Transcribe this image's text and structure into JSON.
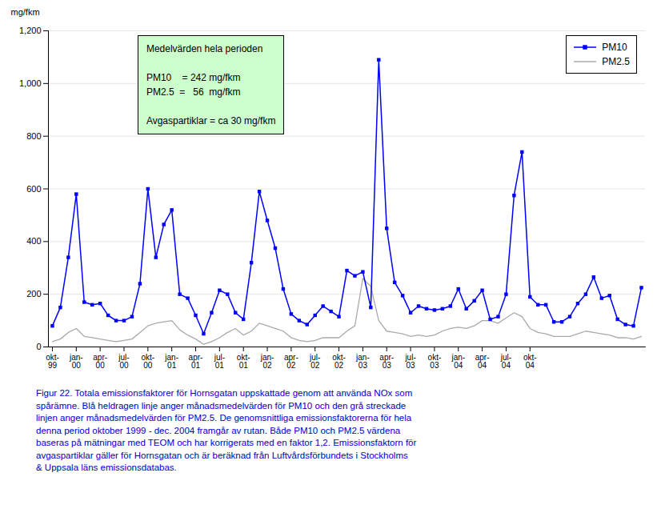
{
  "chart_data": {
    "type": "line",
    "ylabel": "mg/fkm",
    "categories": [
      "okt-\n99",
      null,
      null,
      "jan-\n00",
      null,
      null,
      "apr-\n00",
      null,
      null,
      "jul-\n00",
      null,
      null,
      "okt-\n00",
      null,
      null,
      "jan-\n01",
      null,
      null,
      "apr-\n01",
      null,
      null,
      "jul-\n01",
      null,
      null,
      "okt-\n01",
      null,
      null,
      "jan-\n02",
      null,
      null,
      "apr-\n02",
      null,
      null,
      "jul-\n02",
      null,
      null,
      "okt-\n02",
      null,
      null,
      "jan-\n03",
      null,
      null,
      "apr-\n03",
      null,
      null,
      "jul-\n03",
      null,
      null,
      "okt-\n03",
      null,
      null,
      "jan-\n04",
      null,
      null,
      "apr-\n04",
      null,
      null,
      "jul-\n04",
      null,
      null,
      "okt-\n04",
      null,
      null,
      null,
      null,
      null,
      null,
      null,
      null,
      null,
      null,
      null,
      null,
      null,
      null
    ],
    "series": [
      {
        "name": "PM10",
        "color": "#0000FF",
        "marker": "square",
        "values": [
          80,
          150,
          340,
          580,
          170,
          160,
          165,
          120,
          100,
          100,
          115,
          240,
          600,
          340,
          465,
          520,
          200,
          185,
          120,
          50,
          130,
          215,
          200,
          130,
          105,
          320,
          590,
          480,
          375,
          220,
          125,
          100,
          85,
          120,
          155,
          135,
          115,
          290,
          270,
          285,
          150,
          1090,
          450,
          245,
          195,
          130,
          155,
          145,
          140,
          145,
          155,
          220,
          145,
          175,
          215,
          105,
          115,
          200,
          575,
          740,
          190,
          160,
          160,
          95,
          95,
          115,
          165,
          200,
          265,
          185,
          195,
          105,
          85,
          80,
          225
        ]
      },
      {
        "name": "PM2.5",
        "color": "#AAAAAA",
        "values": [
          20,
          30,
          55,
          70,
          40,
          35,
          30,
          25,
          20,
          25,
          30,
          55,
          80,
          90,
          95,
          100,
          65,
          45,
          30,
          10,
          20,
          35,
          55,
          70,
          45,
          60,
          90,
          80,
          70,
          60,
          35,
          25,
          20,
          25,
          35,
          35,
          35,
          60,
          80,
          260,
          230,
          100,
          60,
          55,
          50,
          40,
          45,
          40,
          45,
          60,
          70,
          75,
          70,
          80,
          100,
          100,
          90,
          110,
          130,
          115,
          70,
          55,
          50,
          40,
          40,
          40,
          50,
          60,
          55,
          50,
          45,
          35,
          35,
          30,
          40
        ]
      }
    ],
    "ylim": [
      0,
      1200
    ],
    "yticks": [
      0,
      200,
      400,
      600,
      800,
      1000,
      1200
    ],
    "grid": true,
    "legend": "upper right",
    "annotation": {
      "title": "Medelvärden hela perioden",
      "lines": [
        [
          "PM10    = 242 mg/fkm",
          "PM2.5  =   56  mg/fkm"
        ],
        [
          "Avgaspartiklar = ca 30 mg/fkm"
        ]
      ],
      "background": "#CCFFCC"
    },
    "caption": {
      "text": "Figur 22. Totala emissionsfaktorer för Hornsgatan uppskattade genom att använda NOx som\nspårämne. Blå heldragen linje anger månadsmedelvärden för PM10 och den grå streckade\nlinjen anger månadsmedelvärden för PM2.5. De genomsnittliga emissionsfaktorerna för hela\ndenna period oktober 1999 - dec. 2004 framgår av rutan. Både PM10 och PM2.5 värdena\nbaseras på mätningar med TEOM och har korrigerats med en faktor 1,2. Emissionsfaktorn för\navgaspartiklar gäller för Hornsgatan och är beräknad från Luftvårdsförbundets i Stockholms\n& Uppsala läns emissionsdatabas.",
      "color": "#0000CC"
    }
  }
}
